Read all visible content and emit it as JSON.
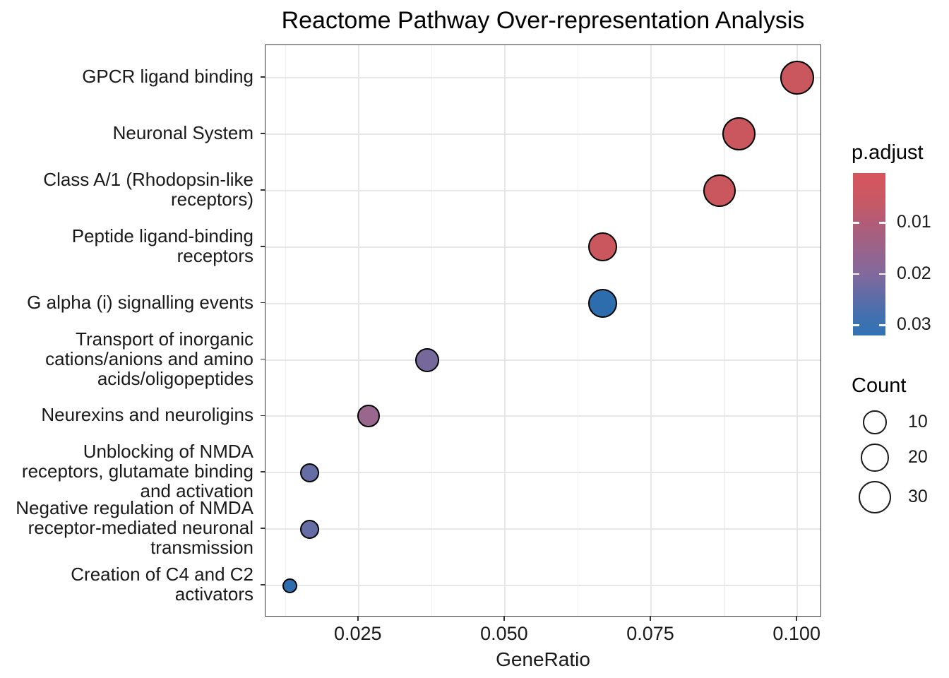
{
  "title": "Reactome Pathway Over-representation Analysis",
  "chart_data": {
    "type": "scatter",
    "title": "Reactome Pathway Over-representation Analysis",
    "xlabel": "GeneRatio",
    "ylabel": "",
    "xlim": [
      0.0091,
      0.1042
    ],
    "x_ticks": [
      {
        "value": 0.025,
        "label": "0.025"
      },
      {
        "value": 0.05,
        "label": "0.050"
      },
      {
        "value": 0.075,
        "label": "0.075"
      },
      {
        "value": 0.1,
        "label": "0.100"
      }
    ],
    "x_minor_ticks": [
      0.0125,
      0.0375,
      0.0625,
      0.0875
    ],
    "grid": true,
    "legend_position": "right",
    "categories": [
      "GPCR ligand binding",
      "Neuronal System",
      "Class A/1 (Rhodopsin-like receptors)",
      "Peptide ligand-binding receptors",
      "G alpha (i) signalling events",
      "Transport of inorganic cations/anions and amino acids/oligopeptides",
      "Neurexins and neuroligins",
      "Unblocking of NMDA receptors, glutamate binding and activation",
      "Negative regulation of NMDA receptor-mediated neuronal transmission",
      "Creation of C4 and C2 activators"
    ],
    "points": [
      {
        "pathway": "GPCR ligand binding",
        "label_lines": [
          "GPCR ligand binding"
        ],
        "gene_ratio": 0.1,
        "count": 30,
        "p_adjust": 0.0002,
        "color": "#c9575d"
      },
      {
        "pathway": "Neuronal System",
        "label_lines": [
          "Neuronal System"
        ],
        "gene_ratio": 0.09,
        "count": 27,
        "p_adjust": 0.0002,
        "color": "#c9575d"
      },
      {
        "pathway": "Class A/1 (Rhodopsin-like receptors)",
        "label_lines": [
          "Class A/1 (Rhodopsin-like",
          "receptors)"
        ],
        "gene_ratio": 0.0867,
        "count": 26,
        "p_adjust": 0.0003,
        "color": "#c9575d"
      },
      {
        "pathway": "Peptide ligand-binding receptors",
        "label_lines": [
          "Peptide ligand-binding",
          "receptors"
        ],
        "gene_ratio": 0.0667,
        "count": 20,
        "p_adjust": 0.001,
        "color": "#c9575d"
      },
      {
        "pathway": "G alpha (i) signalling events",
        "label_lines": [
          "G alpha (i) signalling events"
        ],
        "gene_ratio": 0.0667,
        "count": 20,
        "p_adjust": 0.03,
        "color": "#2e6dad"
      },
      {
        "pathway": "Transport of inorganic cations/anions and amino acids/oligopeptides",
        "label_lines": [
          "Transport of inorganic",
          "cations/anions and amino",
          "acids/oligopeptides"
        ],
        "gene_ratio": 0.0367,
        "count": 11,
        "p_adjust": 0.019,
        "color": "#76689a"
      },
      {
        "pathway": "Neurexins and neuroligins",
        "label_lines": [
          "Neurexins and neuroligins"
        ],
        "gene_ratio": 0.0267,
        "count": 8,
        "p_adjust": 0.014,
        "color": "#99678d"
      },
      {
        "pathway": "Unblocking of NMDA receptors, glutamate binding and activation",
        "label_lines": [
          "Unblocking of NMDA",
          "receptors, glutamate binding",
          "and activation"
        ],
        "gene_ratio": 0.0167,
        "count": 5,
        "p_adjust": 0.024,
        "color": "#666ca4"
      },
      {
        "pathway": "Negative regulation of NMDA receptor-mediated neuronal transmission",
        "label_lines": [
          "Negative regulation of NMDA",
          "receptor-mediated neuronal",
          "transmission"
        ],
        "gene_ratio": 0.0167,
        "count": 5,
        "p_adjust": 0.024,
        "color": "#666ca4"
      },
      {
        "pathway": "Creation of C4 and C2 activators",
        "label_lines": [
          "Creation of C4 and C2",
          "activators"
        ],
        "gene_ratio": 0.0133,
        "count": 4,
        "p_adjust": 0.03,
        "color": "#2e6dad"
      }
    ],
    "legend": {
      "p_adjust": {
        "title": "p.adjust",
        "gradient_top_color": "#d8545c",
        "gradient_bottom_color": "#3273b4",
        "range": [
          0.0003,
          0.032
        ],
        "ticks": [
          {
            "value": 0.01,
            "label": "0.01"
          },
          {
            "value": 0.02,
            "label": "0.02"
          },
          {
            "value": 0.03,
            "label": "0.03"
          }
        ]
      },
      "count": {
        "title": "Count",
        "items": [
          {
            "value": 10,
            "label": "10"
          },
          {
            "value": 20,
            "label": "20"
          },
          {
            "value": 30,
            "label": "30"
          }
        ]
      }
    }
  }
}
